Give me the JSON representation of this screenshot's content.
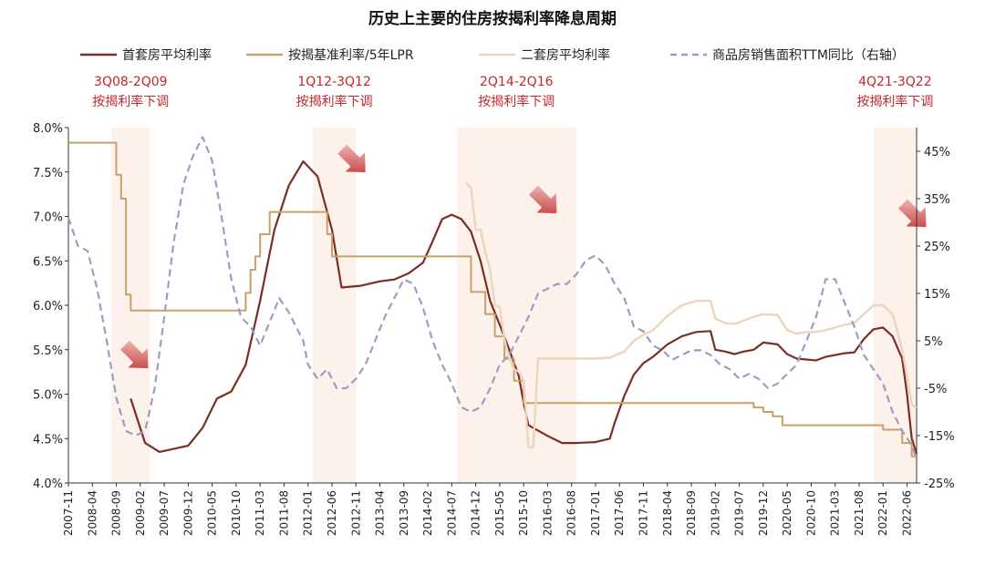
{
  "chart_data": {
    "type": "line",
    "title": "历史上主要的住房按揭利率降息周期",
    "x_ticks": [
      "2007-11",
      "2008-04",
      "2008-09",
      "2009-02",
      "2009-07",
      "2009-12",
      "2010-05",
      "2010-10",
      "2011-03",
      "2011-08",
      "2012-01",
      "2012-06",
      "2012-11",
      "2013-04",
      "2013-09",
      "2014-02",
      "2014-07",
      "2014-12",
      "2015-05",
      "2015-10",
      "2016-03",
      "2016-08",
      "2017-01",
      "2017-06",
      "2017-11",
      "2018-04",
      "2018-09",
      "2019-02",
      "2019-07",
      "2019-12",
      "2020-05",
      "2020-10",
      "2021-03",
      "2021-08",
      "2022-01",
      "2022-06"
    ],
    "x_range": [
      0,
      177
    ],
    "y_left": {
      "range": [
        4.0,
        8.0
      ],
      "ticks": [
        "4.0%",
        "4.5%",
        "5.0%",
        "5.5%",
        "6.0%",
        "6.5%",
        "7.0%",
        "7.5%",
        "8.0%"
      ]
    },
    "y_right": {
      "range": [
        -25,
        50
      ],
      "ticks": [
        "-25%",
        "-15%",
        "-5%",
        "5%",
        "15%",
        "25%",
        "35%",
        "45%"
      ]
    },
    "legend": [
      {
        "name": "首套房平均利率",
        "color": "#7b2d26",
        "style": "solid"
      },
      {
        "name": "按揭基准利率/5年LPR",
        "color": "#c9a06a",
        "style": "solid"
      },
      {
        "name": "二套房平均利率",
        "color": "#ecd6bb",
        "style": "solid"
      },
      {
        "name": "商品房销售面积TTM同比（右轴）",
        "color": "#9a9ec2",
        "style": "dashed"
      }
    ],
    "shaded_periods": [
      {
        "label_line1": "3Q08-2Q09",
        "label_line2": "按揭利率下调",
        "start": 9,
        "end": 17
      },
      {
        "label_line1": "1Q12-3Q12",
        "label_line2": "按揭利率下调",
        "start": 51,
        "end": 60
      },
      {
        "label_line1": "2Q14-2Q16",
        "label_line2": "按揭利率下调",
        "start": 81,
        "end": 106
      },
      {
        "label_line1": "4Q21-3Q22",
        "label_line2": "按揭利率下调",
        "start": 168,
        "end": 177
      }
    ],
    "series": [
      {
        "name": "首套房平均利率",
        "axis": "left",
        "color": "#7b2d26",
        "width": 2.2,
        "dash": "",
        "points": [
          [
            13,
            4.95
          ],
          [
            16,
            4.45
          ],
          [
            19,
            4.35
          ],
          [
            25,
            4.42
          ],
          [
            28,
            4.62
          ],
          [
            31,
            4.95
          ],
          [
            34,
            5.03
          ],
          [
            37,
            5.33
          ],
          [
            40,
            6.05
          ],
          [
            43,
            6.85
          ],
          [
            46,
            7.35
          ],
          [
            49,
            7.62
          ],
          [
            52,
            7.45
          ],
          [
            55,
            6.85
          ],
          [
            57,
            6.2
          ],
          [
            61,
            6.22
          ],
          [
            65,
            6.27
          ],
          [
            68,
            6.29
          ],
          [
            71,
            6.36
          ],
          [
            74,
            6.48
          ],
          [
            76,
            6.72
          ],
          [
            78,
            6.97
          ],
          [
            80,
            7.02
          ],
          [
            82,
            6.97
          ],
          [
            84,
            6.83
          ],
          [
            86,
            6.5
          ],
          [
            88,
            6.05
          ],
          [
            90,
            5.78
          ],
          [
            92,
            5.5
          ],
          [
            94,
            5.2
          ],
          [
            95,
            4.9
          ],
          [
            96,
            4.65
          ],
          [
            100,
            4.53
          ],
          [
            103,
            4.45
          ],
          [
            106,
            4.45
          ],
          [
            110,
            4.46
          ],
          [
            113,
            4.5
          ],
          [
            114,
            4.68
          ],
          [
            116,
            4.98
          ],
          [
            118,
            5.22
          ],
          [
            120,
            5.35
          ],
          [
            122,
            5.42
          ],
          [
            125,
            5.56
          ],
          [
            128,
            5.65
          ],
          [
            131,
            5.7
          ],
          [
            134,
            5.71
          ],
          [
            135,
            5.5
          ],
          [
            137,
            5.48
          ],
          [
            139,
            5.45
          ],
          [
            141,
            5.48
          ],
          [
            143,
            5.5
          ],
          [
            145,
            5.58
          ],
          [
            148,
            5.56
          ],
          [
            150,
            5.45
          ],
          [
            152,
            5.4
          ],
          [
            154,
            5.39
          ],
          [
            156,
            5.38
          ],
          [
            158,
            5.42
          ],
          [
            160,
            5.44
          ],
          [
            162,
            5.46
          ],
          [
            164,
            5.47
          ],
          [
            166,
            5.62
          ],
          [
            168,
            5.73
          ],
          [
            170,
            5.75
          ],
          [
            172,
            5.65
          ],
          [
            174,
            5.4
          ],
          [
            175,
            5.0
          ],
          [
            176,
            4.5
          ],
          [
            177,
            4.33
          ]
        ]
      },
      {
        "name": "按揭基准利率/5年LPR",
        "axis": "left",
        "color": "#c9a06a",
        "width": 2,
        "dash": "",
        "points": [
          [
            0,
            7.83
          ],
          [
            10,
            7.83
          ],
          [
            10,
            7.47
          ],
          [
            11,
            7.47
          ],
          [
            11,
            7.2
          ],
          [
            12,
            7.2
          ],
          [
            12,
            6.12
          ],
          [
            13,
            6.12
          ],
          [
            13,
            5.94
          ],
          [
            37,
            5.94
          ],
          [
            37,
            6.14
          ],
          [
            38,
            6.14
          ],
          [
            38,
            6.4
          ],
          [
            39,
            6.4
          ],
          [
            39,
            6.55
          ],
          [
            40,
            6.55
          ],
          [
            40,
            6.8
          ],
          [
            42,
            6.8
          ],
          [
            42,
            7.05
          ],
          [
            54,
            7.05
          ],
          [
            54,
            6.8
          ],
          [
            55,
            6.8
          ],
          [
            55,
            6.55
          ],
          [
            84,
            6.55
          ],
          [
            84,
            6.15
          ],
          [
            87,
            6.15
          ],
          [
            87,
            5.9
          ],
          [
            89,
            5.9
          ],
          [
            89,
            5.65
          ],
          [
            91,
            5.65
          ],
          [
            91,
            5.4
          ],
          [
            93,
            5.4
          ],
          [
            93,
            5.15
          ],
          [
            95,
            5.15
          ],
          [
            95,
            4.9
          ],
          [
            143,
            4.9
          ],
          [
            143,
            4.85
          ],
          [
            145,
            4.85
          ],
          [
            145,
            4.8
          ],
          [
            147,
            4.8
          ],
          [
            147,
            4.75
          ],
          [
            149,
            4.75
          ],
          [
            149,
            4.65
          ],
          [
            170,
            4.65
          ],
          [
            170,
            4.6
          ],
          [
            174,
            4.6
          ],
          [
            174,
            4.45
          ],
          [
            176,
            4.45
          ],
          [
            176,
            4.3
          ],
          [
            177,
            4.3
          ]
        ]
      },
      {
        "name": "二套房平均利率",
        "axis": "left",
        "color": "#ecd6bb",
        "width": 2.4,
        "dash": "",
        "points": [
          [
            83,
            7.38
          ],
          [
            84,
            7.32
          ],
          [
            85,
            6.85
          ],
          [
            86,
            6.85
          ],
          [
            87,
            6.6
          ],
          [
            88,
            6.4
          ],
          [
            89,
            6.0
          ],
          [
            90,
            5.98
          ],
          [
            91,
            5.62
          ],
          [
            92,
            5.4
          ],
          [
            93,
            5.28
          ],
          [
            94,
            5.25
          ],
          [
            95,
            5.15
          ],
          [
            96,
            4.4
          ],
          [
            97,
            4.4
          ],
          [
            98,
            5.4
          ],
          [
            99,
            5.4
          ],
          [
            100,
            5.4
          ],
          [
            103,
            5.4
          ],
          [
            106,
            5.4
          ],
          [
            110,
            5.4
          ],
          [
            113,
            5.41
          ],
          [
            116,
            5.48
          ],
          [
            118,
            5.6
          ],
          [
            120,
            5.67
          ],
          [
            122,
            5.72
          ],
          [
            125,
            5.88
          ],
          [
            128,
            6.0
          ],
          [
            131,
            6.05
          ],
          [
            134,
            6.05
          ],
          [
            135,
            5.85
          ],
          [
            137,
            5.8
          ],
          [
            139,
            5.79
          ],
          [
            141,
            5.83
          ],
          [
            143,
            5.87
          ],
          [
            145,
            5.9
          ],
          [
            148,
            5.89
          ],
          [
            150,
            5.72
          ],
          [
            152,
            5.68
          ],
          [
            154,
            5.7
          ],
          [
            156,
            5.7
          ],
          [
            158,
            5.72
          ],
          [
            160,
            5.75
          ],
          [
            162,
            5.78
          ],
          [
            164,
            5.8
          ],
          [
            166,
            5.9
          ],
          [
            168,
            6.0
          ],
          [
            170,
            6.0
          ],
          [
            172,
            5.9
          ],
          [
            174,
            5.5
          ],
          [
            175,
            5.2
          ],
          [
            176,
            4.88
          ],
          [
            177,
            4.85
          ]
        ]
      },
      {
        "name": "商品房销售面积TTM同比（右轴）",
        "axis": "right",
        "color": "#9a9ec2",
        "width": 2.2,
        "dash": "8,5",
        "points": [
          [
            0,
            31
          ],
          [
            2,
            25
          ],
          [
            4,
            24
          ],
          [
            6,
            16
          ],
          [
            8,
            5
          ],
          [
            10,
            -7
          ],
          [
            12,
            -14
          ],
          [
            14,
            -15
          ],
          [
            16,
            -14
          ],
          [
            18,
            -5
          ],
          [
            20,
            10
          ],
          [
            22,
            26
          ],
          [
            24,
            38
          ],
          [
            26,
            44
          ],
          [
            28,
            48
          ],
          [
            30,
            43
          ],
          [
            32,
            31
          ],
          [
            34,
            18
          ],
          [
            36,
            10
          ],
          [
            38,
            8
          ],
          [
            40,
            4
          ],
          [
            42,
            9
          ],
          [
            44,
            14
          ],
          [
            46,
            11
          ],
          [
            48,
            7
          ],
          [
            49,
            5
          ],
          [
            50,
            0
          ],
          [
            52,
            -3
          ],
          [
            54,
            -1
          ],
          [
            56,
            -5
          ],
          [
            58,
            -5
          ],
          [
            60,
            -3
          ],
          [
            62,
            0
          ],
          [
            64,
            5
          ],
          [
            66,
            10
          ],
          [
            68,
            14
          ],
          [
            70,
            18
          ],
          [
            72,
            17
          ],
          [
            74,
            12
          ],
          [
            76,
            5
          ],
          [
            78,
            0
          ],
          [
            80,
            -4
          ],
          [
            82,
            -9
          ],
          [
            84,
            -10
          ],
          [
            86,
            -9
          ],
          [
            88,
            -5
          ],
          [
            90,
            0
          ],
          [
            92,
            2
          ],
          [
            94,
            6
          ],
          [
            96,
            10
          ],
          [
            98,
            15
          ],
          [
            100,
            16
          ],
          [
            102,
            17
          ],
          [
            104,
            17
          ],
          [
            106,
            19
          ],
          [
            108,
            22
          ],
          [
            110,
            23
          ],
          [
            112,
            21
          ],
          [
            114,
            17
          ],
          [
            116,
            14
          ],
          [
            118,
            8
          ],
          [
            120,
            7
          ],
          [
            122,
            4
          ],
          [
            124,
            3
          ],
          [
            126,
            1
          ],
          [
            128,
            2
          ],
          [
            130,
            3
          ],
          [
            132,
            3
          ],
          [
            134,
            2
          ],
          [
            136,
            0
          ],
          [
            138,
            -1
          ],
          [
            140,
            -3
          ],
          [
            142,
            -2
          ],
          [
            144,
            -3
          ],
          [
            146,
            -5
          ],
          [
            148,
            -4
          ],
          [
            150,
            -2
          ],
          [
            152,
            0
          ],
          [
            154,
            5
          ],
          [
            156,
            10
          ],
          [
            158,
            18
          ],
          [
            160,
            18
          ],
          [
            162,
            13
          ],
          [
            164,
            8
          ],
          [
            166,
            2
          ],
          [
            168,
            -1
          ],
          [
            170,
            -4
          ],
          [
            172,
            -10
          ],
          [
            174,
            -14
          ],
          [
            176,
            -17
          ],
          [
            177,
            -20
          ]
        ]
      }
    ]
  }
}
